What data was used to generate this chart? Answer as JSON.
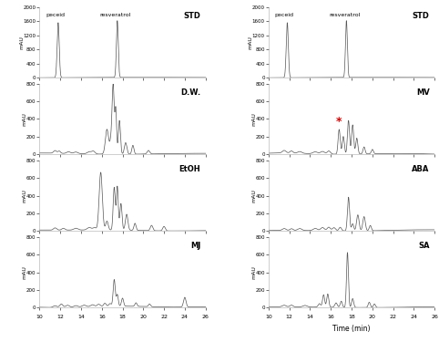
{
  "left_panels": [
    "STD",
    "D.W.",
    "EtOH",
    "MJ"
  ],
  "right_panels": [
    "STD",
    "MV",
    "ABA",
    "SA"
  ],
  "ylim_std": [
    0,
    2000
  ],
  "ylim_std_ticks": [
    0,
    400,
    800,
    1200,
    1600,
    2000
  ],
  "ylim_sample": [
    0,
    800
  ],
  "ylim_sample_ticks": [
    0,
    200,
    400,
    600,
    800
  ],
  "xmin": 10,
  "xmax": 26,
  "xticks": [
    10,
    12,
    14,
    16,
    18,
    20,
    22,
    24,
    26
  ],
  "xlabel": "Time (min)",
  "ylabel": "mAU",
  "peceid_time": 11.8,
  "resveratrol_time": 17.5,
  "bg_color": "#ffffff",
  "line_color": "#555555",
  "red_star_color": "#cc0000",
  "mv_star_time": 16.8
}
